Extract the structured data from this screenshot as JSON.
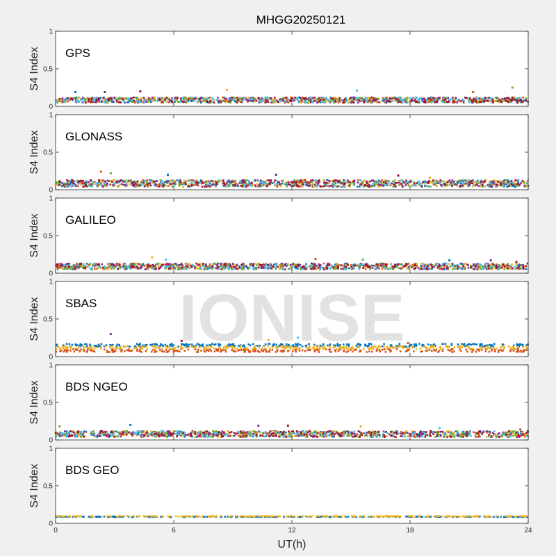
{
  "figure": {
    "title": "MHGG20250121",
    "xlabel": "UT(h)",
    "watermark": "IONISE"
  },
  "colors": [
    "#0072BD",
    "#D95319",
    "#EDB120",
    "#7E2F8E",
    "#77AC30",
    "#4DBEEE",
    "#A2142F"
  ],
  "chart_data": [
    {
      "type": "scatter",
      "panel": "GPS",
      "ylabel": "S4 Index",
      "xlim": [
        0,
        24
      ],
      "ylim": [
        0,
        1
      ],
      "xticks": [
        0,
        6,
        12,
        18,
        24
      ],
      "yticks": [
        0,
        0.5,
        1
      ],
      "series_count": 7,
      "baseline_range": [
        0.05,
        0.12
      ],
      "max_value": 0.25,
      "spikes": [
        [
          1.0,
          0.19
        ],
        [
          2.5,
          0.19
        ],
        [
          4.3,
          0.2
        ],
        [
          8.7,
          0.22
        ],
        [
          15.3,
          0.21
        ],
        [
          21.2,
          0.19
        ],
        [
          23.2,
          0.25
        ]
      ]
    },
    {
      "type": "scatter",
      "panel": "GLONASS",
      "ylabel": "S4 Index",
      "xlim": [
        0,
        24
      ],
      "ylim": [
        0,
        1
      ],
      "xticks": [
        0,
        6,
        12,
        18,
        24
      ],
      "yticks": [
        0,
        0.5,
        1
      ],
      "series_count": 7,
      "baseline_range": [
        0.04,
        0.13
      ],
      "max_value": 0.24,
      "spikes": [
        [
          2.3,
          0.24
        ],
        [
          2.8,
          0.22
        ],
        [
          5.7,
          0.2
        ],
        [
          11.2,
          0.2
        ],
        [
          17.4,
          0.19
        ],
        [
          19.0,
          0.16
        ],
        [
          23.5,
          0.13
        ]
      ]
    },
    {
      "type": "scatter",
      "panel": "GALILEO",
      "ylabel": "S4 Index",
      "xlim": [
        0,
        24
      ],
      "ylim": [
        0,
        1
      ],
      "xticks": [
        0,
        6,
        12,
        18,
        24
      ],
      "yticks": [
        0,
        0.5,
        1
      ],
      "series_count": 7,
      "baseline_range": [
        0.05,
        0.13
      ],
      "max_value": 0.22,
      "spikes": [
        [
          4.9,
          0.21
        ],
        [
          5.6,
          0.18
        ],
        [
          13.2,
          0.19
        ],
        [
          15.6,
          0.18
        ],
        [
          20.0,
          0.17
        ],
        [
          22.1,
          0.17
        ],
        [
          23.4,
          0.15
        ]
      ]
    },
    {
      "type": "scatter",
      "panel": "SBAS",
      "ylabel": "S4 Index",
      "xlim": [
        0,
        24
      ],
      "ylim": [
        0,
        1
      ],
      "xticks": [
        0,
        6,
        12,
        18,
        24
      ],
      "yticks": [
        0,
        0.5,
        1
      ],
      "series_count": 3,
      "baseline_range": [
        0.07,
        0.17
      ],
      "max_value": 0.3,
      "spikes": [
        [
          2.8,
          0.3
        ],
        [
          6.4,
          0.21
        ],
        [
          10.8,
          0.22
        ],
        [
          12.3,
          0.25
        ],
        [
          17.9,
          0.18
        ]
      ]
    },
    {
      "type": "scatter",
      "panel": "BDS NGEO",
      "ylabel": "S4 Index",
      "xlim": [
        0,
        24
      ],
      "ylim": [
        0,
        1
      ],
      "xticks": [
        0,
        6,
        12,
        18,
        24
      ],
      "yticks": [
        0,
        0.5,
        1
      ],
      "series_count": 7,
      "baseline_range": [
        0.04,
        0.12
      ],
      "max_value": 0.2,
      "spikes": [
        [
          0.2,
          0.18
        ],
        [
          3.8,
          0.2
        ],
        [
          10.3,
          0.19
        ],
        [
          11.8,
          0.19
        ],
        [
          15.5,
          0.18
        ],
        [
          19.5,
          0.16
        ],
        [
          23.6,
          0.14
        ]
      ]
    },
    {
      "type": "scatter",
      "panel": "BDS GEO",
      "ylabel": "S4 Index",
      "xlim": [
        0,
        24
      ],
      "ylim": [
        0,
        1
      ],
      "xticks": [
        0,
        6,
        12,
        18,
        24
      ],
      "yticks": [
        0,
        0.5,
        1
      ],
      "series_count": 2,
      "baseline_range": [
        0.08,
        0.1
      ],
      "max_value": 0.11,
      "spikes": []
    }
  ]
}
